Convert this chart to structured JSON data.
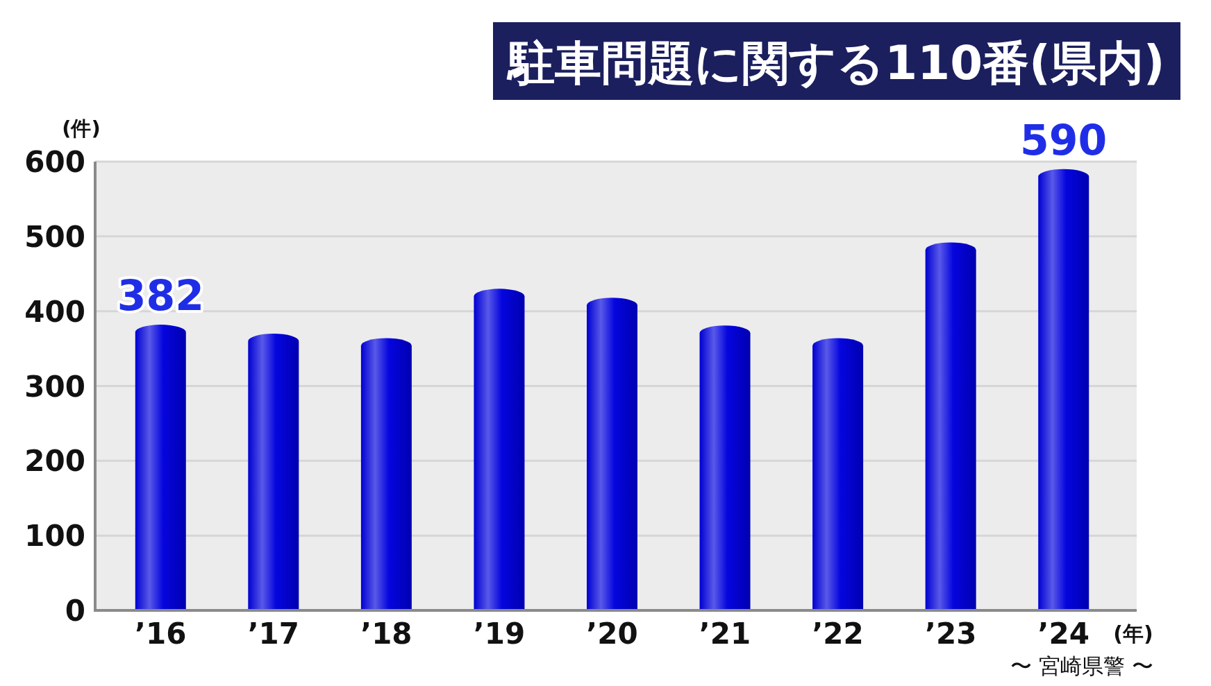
{
  "chart_data": {
    "type": "bar",
    "title": "駐車問題に関する110番(県内)",
    "ylabel": "(件)",
    "xlabel": "(年)",
    "categories": [
      "’16",
      "’17",
      "’18",
      "’19",
      "’20",
      "’21",
      "’22",
      "’23",
      "’24"
    ],
    "values": [
      382,
      370,
      364,
      430,
      418,
      381,
      364,
      492,
      590
    ],
    "value_labels": [
      "382",
      null,
      null,
      null,
      null,
      null,
      null,
      null,
      "590"
    ],
    "color": "#0000dd",
    "ylim": [
      0,
      600
    ],
    "yticks": [
      0,
      100,
      200,
      300,
      400,
      500,
      600
    ],
    "grid": "y",
    "annotations": [
      "〜 宮崎県警 〜"
    ]
  }
}
